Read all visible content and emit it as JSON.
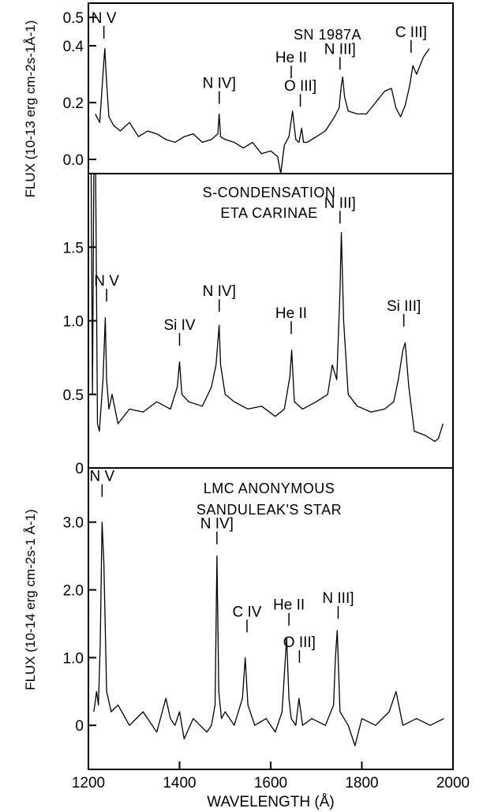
{
  "figure": {
    "xlabel": "WAVELENGTH (Å)",
    "x_ticks": [
      "1200",
      "1400",
      "1600",
      "1800",
      "2000"
    ]
  },
  "chart_data": [
    {
      "type": "line",
      "panel": "top",
      "title_lines": [
        "SN 1987A"
      ],
      "ylabel": "FLUX (10-13 erg cm-2s-1Å-1)",
      "xlim": [
        1200,
        2000
      ],
      "ylim": [
        -0.05,
        0.55
      ],
      "y_ticks": [
        {
          "label": "0.5",
          "v": 0.5
        },
        {
          "label": "0.4",
          "v": 0.4
        },
        {
          "label": "0.2",
          "v": 0.2
        },
        {
          "label": "0.0",
          "v": 0.0
        }
      ],
      "series": [
        {
          "x": [
            1215,
            1225,
            1232,
            1236,
            1240,
            1245,
            1255,
            1270,
            1290,
            1310,
            1330,
            1350,
            1370,
            1390,
            1410,
            1430,
            1450,
            1470,
            1484,
            1487,
            1490,
            1500,
            1520,
            1540,
            1560,
            1580,
            1600,
            1615,
            1622,
            1630,
            1640,
            1648,
            1655,
            1662,
            1668,
            1672,
            1680,
            1700,
            1720,
            1740,
            1750,
            1755,
            1758,
            1762,
            1770,
            1790,
            1810,
            1830,
            1850,
            1865,
            1875,
            1885,
            1895,
            1905,
            1912,
            1920,
            1935,
            1948
          ],
          "y": [
            0.16,
            0.13,
            0.3,
            0.39,
            0.27,
            0.15,
            0.12,
            0.1,
            0.13,
            0.08,
            0.1,
            0.09,
            0.07,
            0.06,
            0.08,
            0.09,
            0.06,
            0.07,
            0.09,
            0.16,
            0.08,
            0.07,
            0.06,
            0.04,
            0.06,
            0.02,
            0.03,
            0.01,
            -0.07,
            0.05,
            0.08,
            0.17,
            0.07,
            0.06,
            0.11,
            0.06,
            0.06,
            0.08,
            0.1,
            0.15,
            0.18,
            0.26,
            0.29,
            0.22,
            0.17,
            0.16,
            0.16,
            0.2,
            0.24,
            0.25,
            0.18,
            0.15,
            0.19,
            0.26,
            0.33,
            0.3,
            0.36,
            0.39
          ]
        }
      ],
      "annotations": [
        {
          "text": "N V",
          "x": 1234,
          "y": 0.42
        },
        {
          "text": "N IV]",
          "x": 1487,
          "y": 0.19
        },
        {
          "text": "He II",
          "x": 1645,
          "y": 0.28
        },
        {
          "text": "O III]",
          "x": 1665,
          "y": 0.18
        },
        {
          "text": "N III]",
          "x": 1752,
          "y": 0.31
        },
        {
          "text": "C III]",
          "x": 1908,
          "y": 0.37
        }
      ]
    },
    {
      "type": "line",
      "panel": "middle",
      "title_lines": [
        "S-CONDENSATION",
        "ETA CARINAE"
      ],
      "ylabel": "FLUX (10-13 erg cm-2s-1Å-1)",
      "xlim": [
        1200,
        2000
      ],
      "ylim": [
        0,
        2.0
      ],
      "y_ticks": [
        {
          "label": "1.5",
          "v": 1.5
        },
        {
          "label": "1.0",
          "v": 1.0
        },
        {
          "label": "0.5",
          "v": 0.5
        },
        {
          "label": "0",
          "v": 0
        }
      ],
      "series": [
        {
          "x": [
            1203,
            1206,
            1209,
            1212,
            1216,
            1220,
            1224,
            1232,
            1237,
            1240,
            1245,
            1252,
            1265,
            1290,
            1320,
            1350,
            1380,
            1395,
            1400,
            1405,
            1420,
            1450,
            1470,
            1480,
            1487,
            1490,
            1500,
            1520,
            1550,
            1580,
            1610,
            1630,
            1642,
            1646,
            1652,
            1670,
            1700,
            1725,
            1735,
            1745,
            1752,
            1755,
            1760,
            1770,
            1790,
            1820,
            1850,
            1870,
            1880,
            1890,
            1895,
            1903,
            1915,
            1940,
            1960,
            1968,
            1978
          ],
          "y": [
            2.0,
            2.0,
            0.5,
            2.0,
            2.0,
            0.3,
            0.25,
            0.6,
            1.02,
            0.6,
            0.4,
            0.5,
            0.3,
            0.4,
            0.38,
            0.45,
            0.4,
            0.55,
            0.72,
            0.5,
            0.45,
            0.42,
            0.55,
            0.7,
            0.97,
            0.7,
            0.5,
            0.45,
            0.4,
            0.42,
            0.35,
            0.4,
            0.62,
            0.8,
            0.45,
            0.4,
            0.45,
            0.5,
            0.7,
            0.6,
            1.2,
            1.6,
            1.0,
            0.5,
            0.42,
            0.38,
            0.4,
            0.45,
            0.6,
            0.8,
            0.85,
            0.55,
            0.25,
            0.22,
            0.18,
            0.2,
            0.3
          ]
        }
      ],
      "annotations": [
        {
          "text": "N V",
          "x": 1240,
          "y": 1.12
        },
        {
          "text": "Si IV",
          "x": 1400,
          "y": 0.82
        },
        {
          "text": "N IV]",
          "x": 1487,
          "y": 1.05
        },
        {
          "text": "He II",
          "x": 1645,
          "y": 0.9
        },
        {
          "text": "N III]",
          "x": 1752,
          "y": 1.65
        },
        {
          "text": "Si III]",
          "x": 1892,
          "y": 0.95
        }
      ]
    },
    {
      "type": "line",
      "panel": "bottom",
      "title_lines": [
        "LMC ANONYMOUS",
        "SANDULEAK'S STAR"
      ],
      "ylabel": "FLUX (10-14 erg cm-2s-1 Å-1)",
      "xlim": [
        1200,
        2000
      ],
      "ylim": [
        -0.65,
        3.8
      ],
      "y_ticks": [
        {
          "label": "3.0",
          "v": 3.0
        },
        {
          "label": "2.0",
          "v": 2.0
        },
        {
          "label": "1.0",
          "v": 1.0
        },
        {
          "label": "0",
          "v": 0
        }
      ],
      "series": [
        {
          "x": [
            1212,
            1218,
            1222,
            1226,
            1230,
            1234,
            1240,
            1250,
            1265,
            1290,
            1320,
            1350,
            1370,
            1380,
            1390,
            1400,
            1410,
            1430,
            1460,
            1470,
            1478,
            1482,
            1486,
            1492,
            1500,
            1520,
            1538,
            1544,
            1550,
            1565,
            1590,
            1610,
            1625,
            1635,
            1640,
            1645,
            1655,
            1662,
            1670,
            1690,
            1720,
            1738,
            1742,
            1746,
            1752,
            1770,
            1785,
            1800,
            1830,
            1860,
            1875,
            1890,
            1920,
            1950,
            1980
          ],
          "y": [
            0.2,
            0.5,
            0.3,
            1.2,
            3.0,
            2.4,
            0.5,
            0.2,
            0.3,
            0.0,
            0.2,
            -0.1,
            0.4,
            0.1,
            0.0,
            0.2,
            -0.2,
            0.1,
            -0.1,
            0.0,
            0.3,
            2.5,
            0.5,
            0.1,
            0.2,
            0.0,
            0.4,
            1.0,
            0.3,
            0.0,
            0.1,
            -0.1,
            0.2,
            1.3,
            0.4,
            0.1,
            0.0,
            0.4,
            0.0,
            0.1,
            0.0,
            0.3,
            1.0,
            1.4,
            0.2,
            0.0,
            -0.3,
            0.1,
            0.0,
            0.2,
            0.5,
            0.0,
            0.1,
            0.0,
            0.1
          ]
        }
      ],
      "annotations": [
        {
          "text": "N V",
          "x": 1230,
          "y": 3.35
        },
        {
          "text": "N IV]",
          "x": 1482,
          "y": 2.65
        },
        {
          "text": "C IV",
          "x": 1548,
          "y": 1.35
        },
        {
          "text": "He II",
          "x": 1640,
          "y": 1.45
        },
        {
          "text": "O III]",
          "x": 1663,
          "y": 0.9
        },
        {
          "text": "N III]",
          "x": 1748,
          "y": 1.55
        }
      ]
    }
  ]
}
